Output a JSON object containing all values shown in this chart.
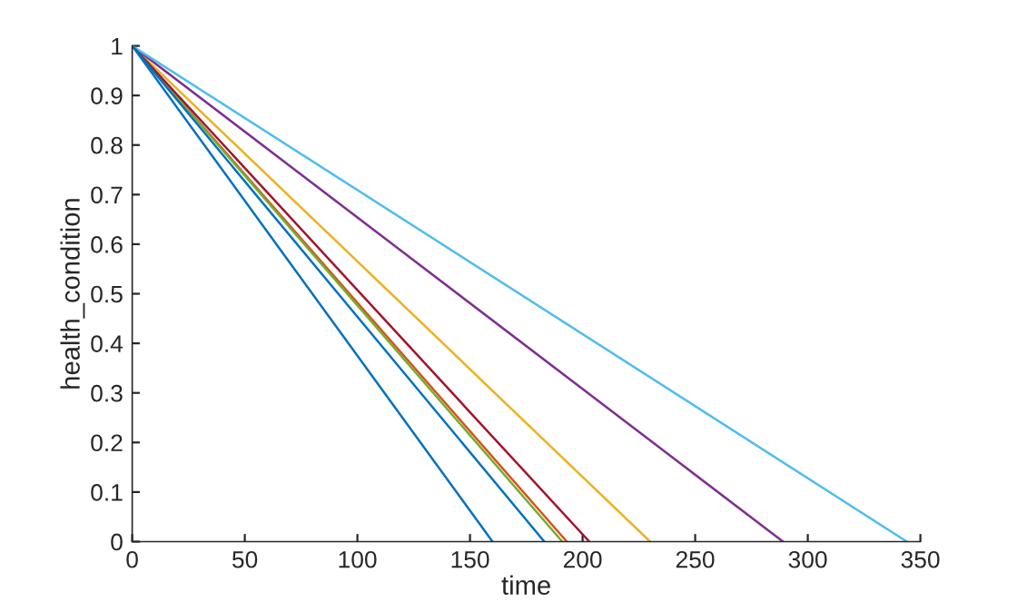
{
  "chart_data": {
    "type": "line",
    "xlabel": "time",
    "ylabel": "health_condition",
    "xlim": [
      0,
      350
    ],
    "ylim": [
      0,
      1
    ],
    "xticks": [
      0,
      50,
      100,
      150,
      200,
      250,
      300,
      350
    ],
    "yticks": [
      0,
      {
        "value": 0.1,
        "label": "0.1"
      },
      {
        "value": 0.2,
        "label": "0.2"
      },
      {
        "value": 0.3,
        "label": "0.3"
      },
      {
        "value": 0.4,
        "label": "0.4"
      },
      {
        "value": 0.5,
        "label": "0.5"
      },
      {
        "value": 0.6,
        "label": "0.6"
      },
      {
        "value": 0.7,
        "label": "0.7"
      },
      {
        "value": 0.8,
        "label": "0.8"
      },
      {
        "value": 0.9,
        "label": "0.9"
      },
      1
    ],
    "grid": false,
    "line_style": "solid",
    "series": [
      {
        "color": "#0072bd",
        "x": [
          0,
          160
        ],
        "values": [
          1,
          0
        ]
      },
      {
        "color": "#d95319",
        "x": [
          0,
          193
        ],
        "values": [
          1,
          0
        ]
      },
      {
        "color": "#edb120",
        "x": [
          0,
          230
        ],
        "values": [
          1,
          0
        ]
      },
      {
        "color": "#7e2f8e",
        "x": [
          0,
          289
        ],
        "values": [
          1,
          0
        ]
      },
      {
        "color": "#77ac30",
        "x": [
          0,
          191
        ],
        "values": [
          1,
          0
        ]
      },
      {
        "color": "#4dbeee",
        "x": [
          0,
          344
        ],
        "values": [
          1,
          0
        ]
      },
      {
        "color": "#a2142f",
        "x": [
          0,
          203
        ],
        "values": [
          1,
          0
        ]
      },
      {
        "color": "#0072bd",
        "x": [
          0,
          183
        ],
        "values": [
          1,
          0
        ]
      }
    ]
  }
}
